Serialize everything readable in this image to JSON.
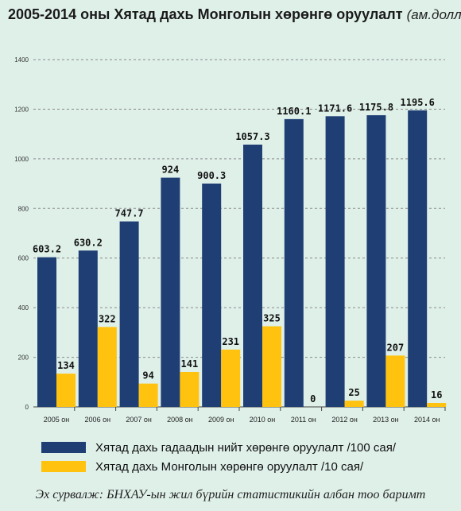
{
  "chart_data": {
    "type": "bar",
    "title": "2005-2014 оны Хятад дахь Монголын хөрөнгө оруулалт",
    "subtitle": "(ам.доллар)",
    "categories": [
      "2005 он",
      "2006 он",
      "2007 он",
      "2008 он",
      "2009 он",
      "2010 он",
      "2011 он",
      "2012 он",
      "2013 он",
      "2014 он"
    ],
    "series": [
      {
        "name": "Хятад дахь гадаадын нийт хөрөнгө оруулалт /100 сая/",
        "color": "#1f3f74",
        "values": [
          603.2,
          630.2,
          747.7,
          924,
          900.3,
          1057.3,
          1160.1,
          1171.6,
          1175.8,
          1195.6
        ],
        "labels": [
          "603.2",
          "630.2",
          "747.7",
          "924",
          "900.3",
          "1057.3",
          "1160.1",
          "1171.6",
          "1175.8",
          "1195.6"
        ]
      },
      {
        "name": "Хятад дахь Монголын хөрөнгө оруулалт  /10 сая/",
        "color": "#ffc20e",
        "values": [
          134,
          322,
          94,
          141,
          231,
          325,
          0,
          25,
          207,
          16
        ],
        "labels": [
          "134",
          "322",
          "94",
          "141",
          "231",
          "325",
          "0",
          "25",
          "207",
          "16"
        ]
      }
    ],
    "yticks": [
      "0",
      "200",
      "400",
      "600",
      "800",
      "1000",
      "1200",
      "1400"
    ],
    "ylim": [
      0,
      1400
    ],
    "grid": "dashed horizontal",
    "legend_position": "bottom"
  },
  "source": "Эх сурвалж: БНХАУ-ын жил бүрийн статистикийн албан тоо баримт"
}
